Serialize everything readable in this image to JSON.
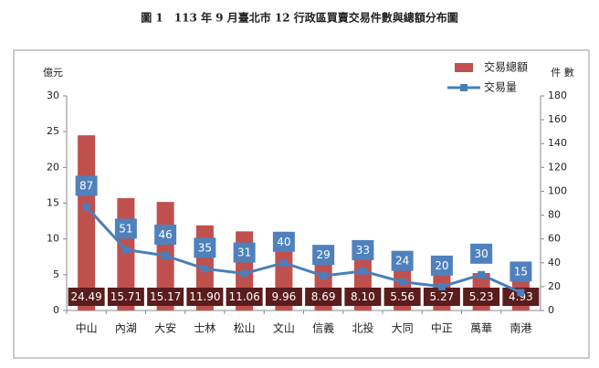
{
  "chart_data": {
    "type": "bar",
    "title": "圖 1　113 年 9 月臺北市 12 行政區買賣交易件數與總額分布圖",
    "y_label": "億元",
    "y2_label": "件 數",
    "categories": [
      "中山",
      "內湖",
      "大安",
      "士林",
      "松山",
      "文山",
      "信義",
      "北投",
      "大同",
      "中正",
      "萬華",
      "南港"
    ],
    "series": [
      {
        "name": "交易總額",
        "color": "#c0504d",
        "values": [
          24.49,
          15.71,
          15.17,
          11.9,
          11.06,
          9.96,
          8.69,
          8.1,
          5.56,
          5.27,
          5.23,
          4.93
        ],
        "value_labels": [
          "24.49",
          "15.71",
          "15.17",
          "11.90",
          "11.06",
          "9.96",
          "8.69",
          "8.10",
          "5.56",
          "5.27",
          "5.23",
          "4.93"
        ]
      },
      {
        "name": "交易量",
        "color": "#4a7ebb",
        "type": "line",
        "axis": "y2",
        "values": [
          87,
          51,
          46,
          35,
          31,
          40,
          29,
          33,
          24,
          20,
          30,
          15
        ]
      }
    ],
    "ylim": [
      0,
      30
    ],
    "yticks": [
      0,
      5,
      10,
      15,
      20,
      25,
      30
    ],
    "y2lim": [
      0,
      180
    ],
    "y2ticks": [
      0,
      20,
      40,
      60,
      80,
      100,
      120,
      140,
      160,
      180
    ],
    "legend": "top-right",
    "grid": false
  }
}
